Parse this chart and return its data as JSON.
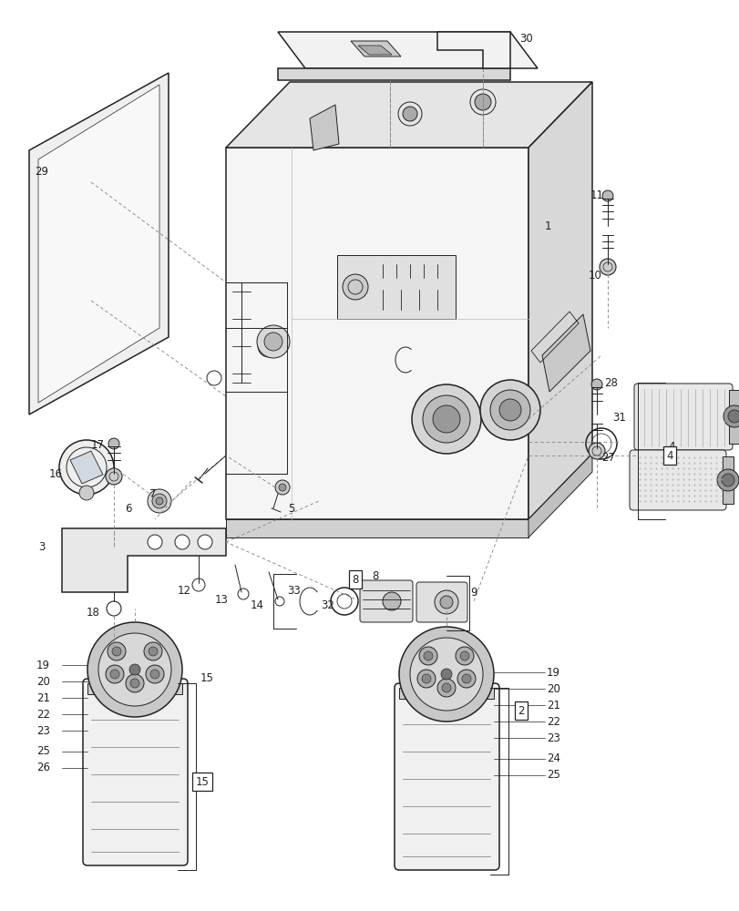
{
  "bg": "#ffffff",
  "lc": "#222222",
  "lw": 1.1,
  "lw2": 0.7,
  "fs": 8.5,
  "figw": 8.12,
  "figh": 10.0,
  "dpi": 100
}
